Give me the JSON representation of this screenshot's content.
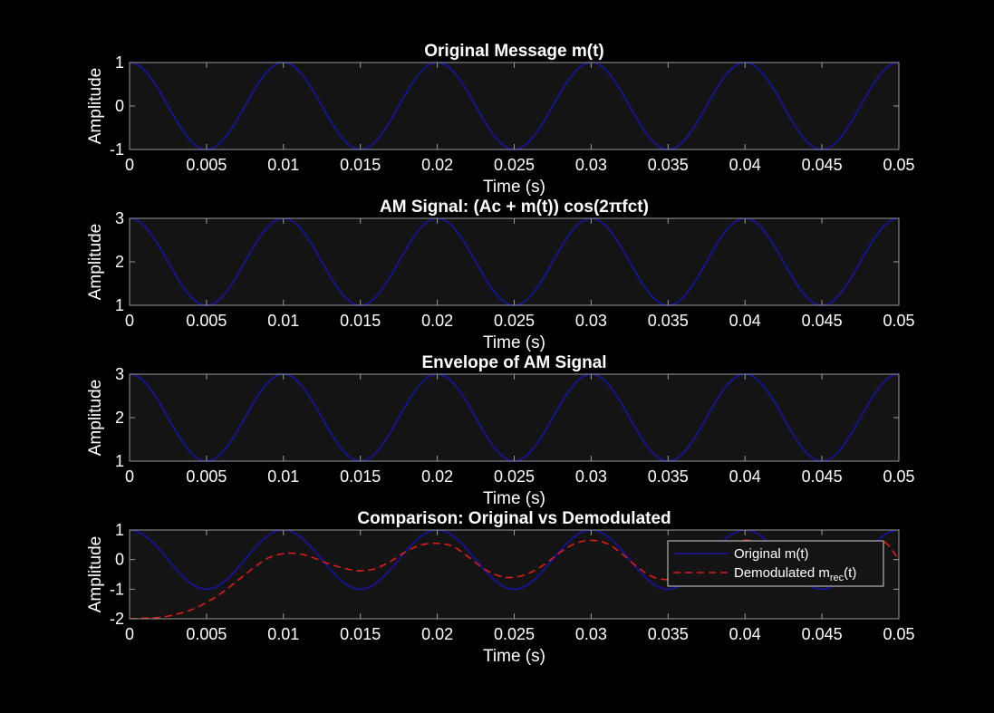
{
  "figure": {
    "background": "#000000",
    "axes_background": "#141414",
    "axis_color": "#9a9a9a",
    "text_color": "#ffffff"
  },
  "chart_data": [
    {
      "type": "line",
      "title": "Original Message m(t)",
      "xlabel": "Time (s)",
      "ylabel": "Amplitude",
      "xlim": [
        0,
        0.05
      ],
      "ylim": [
        -1,
        1
      ],
      "xticks": [
        0,
        0.005,
        0.01,
        0.015,
        0.02,
        0.025,
        0.03,
        0.035,
        0.04,
        0.045,
        0.05
      ],
      "xtick_labels": [
        "0",
        "0.005",
        "0.01",
        "0.015",
        "0.02",
        "0.025",
        "0.03",
        "0.035",
        "0.04",
        "0.045",
        "0.05"
      ],
      "yticks": [
        -1,
        0,
        1
      ],
      "ytick_labels": [
        "-1",
        "0",
        "1"
      ],
      "grid": false,
      "series": [
        {
          "color": "#1414a8",
          "style": "solid",
          "x": [
            0,
            0.0025,
            0.005,
            0.0075,
            0.01,
            0.0125,
            0.015,
            0.0175,
            0.02,
            0.0225,
            0.025,
            0.0275,
            0.03,
            0.0325,
            0.035,
            0.0375,
            0.04,
            0.0425,
            0.045,
            0.0475,
            0.05
          ],
          "y": [
            1,
            0,
            -1,
            0,
            1,
            0,
            -1,
            0,
            1,
            0,
            -1,
            0,
            1,
            0,
            -1,
            0,
            1,
            0,
            -1,
            0,
            1
          ],
          "note_shape": "cosine, frequency 100 Hz"
        }
      ]
    },
    {
      "type": "line",
      "title": "AM Signal: (Ac + m(t)) cos(2πfct)",
      "xlabel": "Time (s)",
      "ylabel": "Amplitude",
      "xlim": [
        0,
        0.05
      ],
      "ylim": [
        1,
        3
      ],
      "xticks": [
        0,
        0.005,
        0.01,
        0.015,
        0.02,
        0.025,
        0.03,
        0.035,
        0.04,
        0.045,
        0.05
      ],
      "xtick_labels": [
        "0",
        "0.005",
        "0.01",
        "0.015",
        "0.02",
        "0.025",
        "0.03",
        "0.035",
        "0.04",
        "0.045",
        "0.05"
      ],
      "yticks": [
        1,
        2,
        3
      ],
      "ytick_labels": [
        "1",
        "2",
        "3"
      ],
      "grid": false,
      "series": [
        {
          "color": "#1414a8",
          "style": "solid",
          "x": [
            0,
            0.0025,
            0.005,
            0.0075,
            0.01,
            0.0125,
            0.015,
            0.0175,
            0.02,
            0.0225,
            0.025,
            0.0275,
            0.03,
            0.0325,
            0.035,
            0.0375,
            0.04,
            0.0425,
            0.045,
            0.0475,
            0.05
          ],
          "y": [
            3,
            2,
            1,
            2,
            3,
            2,
            1,
            2,
            3,
            2,
            1,
            2,
            3,
            2,
            1,
            2,
            3,
            2,
            1,
            2,
            3
          ]
        }
      ]
    },
    {
      "type": "line",
      "title": "Envelope of AM Signal",
      "xlabel": "Time (s)",
      "ylabel": "Amplitude",
      "xlim": [
        0,
        0.05
      ],
      "ylim": [
        1,
        3
      ],
      "xticks": [
        0,
        0.005,
        0.01,
        0.015,
        0.02,
        0.025,
        0.03,
        0.035,
        0.04,
        0.045,
        0.05
      ],
      "xtick_labels": [
        "0",
        "0.005",
        "0.01",
        "0.015",
        "0.02",
        "0.025",
        "0.03",
        "0.035",
        "0.04",
        "0.045",
        "0.05"
      ],
      "yticks": [
        1,
        2,
        3
      ],
      "ytick_labels": [
        "1",
        "2",
        "3"
      ],
      "grid": false,
      "series": [
        {
          "color": "#1414a8",
          "style": "solid",
          "x": [
            0,
            0.0025,
            0.005,
            0.0075,
            0.01,
            0.0125,
            0.015,
            0.0175,
            0.02,
            0.0225,
            0.025,
            0.0275,
            0.03,
            0.0325,
            0.035,
            0.0375,
            0.04,
            0.0425,
            0.045,
            0.0475,
            0.05
          ],
          "y": [
            3,
            2,
            1,
            2,
            3,
            2,
            1,
            2,
            3,
            2,
            1,
            2,
            3,
            2,
            1,
            2,
            3,
            2,
            1,
            2,
            3
          ]
        }
      ]
    },
    {
      "type": "line",
      "title": "Comparison: Original vs Demodulated",
      "xlabel": "Time (s)",
      "ylabel": "Amplitude",
      "xlim": [
        0,
        0.05
      ],
      "ylim": [
        -2,
        1
      ],
      "xticks": [
        0,
        0.005,
        0.01,
        0.015,
        0.02,
        0.025,
        0.03,
        0.035,
        0.04,
        0.045,
        0.05
      ],
      "xtick_labels": [
        "0",
        "0.005",
        "0.01",
        "0.015",
        "0.02",
        "0.025",
        "0.03",
        "0.035",
        "0.04",
        "0.045",
        "0.05"
      ],
      "yticks": [
        -2,
        -1,
        0,
        1
      ],
      "ytick_labels": [
        "-2",
        "-1",
        "0",
        "1"
      ],
      "grid": false,
      "legend": {
        "position": "upper-right",
        "entries": [
          {
            "label": "Original m(t)",
            "color": "#1414a8",
            "style": "solid"
          },
          {
            "label_main": "Demodulated  m",
            "label_sub": "rec",
            "label_tail": "(t)",
            "color": "#e01b1b",
            "style": "dashed"
          }
        ]
      },
      "series": [
        {
          "color": "#1414a8",
          "style": "solid",
          "x": [
            0,
            0.0025,
            0.005,
            0.0075,
            0.01,
            0.0125,
            0.015,
            0.0175,
            0.02,
            0.0225,
            0.025,
            0.0275,
            0.03,
            0.0325,
            0.035,
            0.0375,
            0.04,
            0.0425,
            0.045,
            0.0475,
            0.05
          ],
          "y": [
            1,
            0,
            -1,
            0,
            1,
            0,
            -1,
            0,
            1,
            0,
            -1,
            0,
            1,
            0,
            -1,
            0,
            1,
            0,
            -1,
            0,
            1
          ]
        },
        {
          "color": "#e01b1b",
          "style": "dashed",
          "x": [
            0,
            0.001,
            0.002,
            0.003,
            0.004,
            0.005,
            0.006,
            0.007,
            0.008,
            0.009,
            0.01,
            0.011,
            0.012,
            0.013,
            0.014,
            0.015,
            0.016,
            0.017,
            0.018,
            0.019,
            0.02,
            0.021,
            0.022,
            0.023,
            0.024,
            0.025,
            0.026,
            0.027,
            0.028,
            0.029,
            0.03,
            0.031,
            0.032,
            0.033,
            0.034,
            0.035,
            0.036,
            0.037,
            0.038,
            0.039,
            0.04,
            0.041,
            0.042,
            0.043,
            0.044,
            0.045,
            0.046,
            0.047,
            0.048,
            0.049,
            0.05
          ],
          "y": [
            -2.0,
            -1.98,
            -1.95,
            -1.85,
            -1.7,
            -1.45,
            -1.12,
            -0.72,
            -0.3,
            0.05,
            0.2,
            0.2,
            0.05,
            -0.15,
            -0.3,
            -0.38,
            -0.3,
            -0.05,
            0.28,
            0.5,
            0.55,
            0.45,
            0.1,
            -0.3,
            -0.55,
            -0.6,
            -0.45,
            -0.15,
            0.25,
            0.55,
            0.65,
            0.55,
            0.2,
            -0.25,
            -0.58,
            -0.68,
            -0.6,
            -0.3,
            0.15,
            0.5,
            0.65,
            0.55,
            0.2,
            -0.25,
            -0.55,
            -0.65,
            -0.45,
            0.0,
            0.4,
            0.62,
            0.0
          ]
        }
      ]
    }
  ]
}
